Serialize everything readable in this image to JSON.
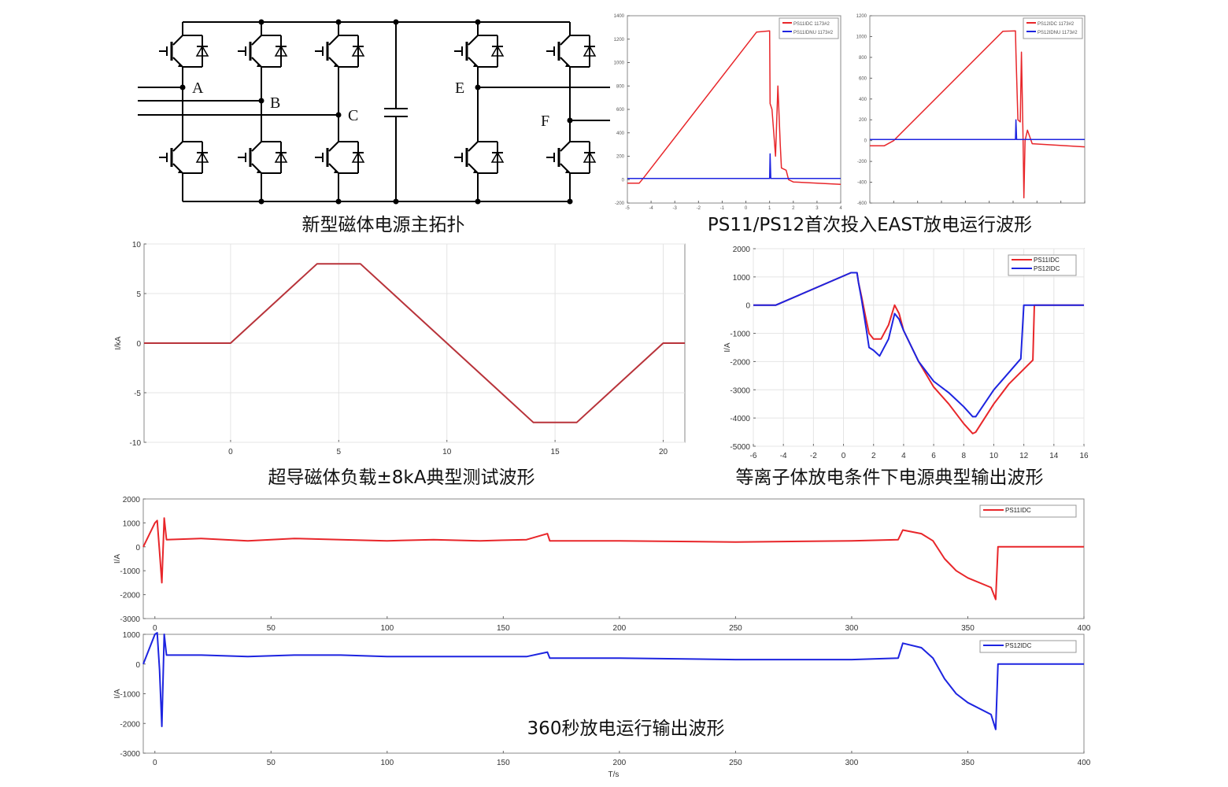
{
  "diagram": {
    "caption": "新型磁体电源主拓扑",
    "node_labels": {
      "A": "A",
      "B": "B",
      "C": "C",
      "E": "E",
      "F": "F"
    }
  },
  "captions": {
    "east_first": "PS11/PS12首次投入EAST放电运行波形",
    "test_8ka": "超导磁体负载±8kA典型测试波形",
    "plasma": "等离子体放电条件下电源典型输出波形",
    "run_360s": "360秒放电运行输出波形"
  },
  "colors": {
    "red": "#e8262a",
    "blue": "#1d24e0",
    "darkred": "#b8333a",
    "grid": "#e4e4e4"
  },
  "chart_data": [
    {
      "id": "east-ps11",
      "type": "line",
      "xlim": [
        -5,
        4
      ],
      "ylim": [
        -200,
        1400
      ],
      "xticks": [
        -5,
        -4,
        -3,
        -2,
        -1,
        0,
        1,
        2,
        3,
        4
      ],
      "yticks": [
        -200,
        0,
        200,
        400,
        600,
        800,
        1000,
        1200,
        1400
      ],
      "xtick_labels": true,
      "grid": false,
      "small": true,
      "legend": "top-right",
      "legend_entries": [
        "PS11IDC 1173#2",
        "PS11IDNU 1173#2"
      ],
      "series": [
        {
          "color": "red",
          "points": [
            [
              -5,
              -30
            ],
            [
              -4.5,
              -30
            ],
            [
              -4.3,
              20
            ],
            [
              0.45,
              1260
            ],
            [
              1.0,
              1270
            ],
            [
              1.02,
              650
            ],
            [
              1.1,
              600
            ],
            [
              1.25,
              200
            ],
            [
              1.35,
              800
            ],
            [
              1.45,
              300
            ],
            [
              1.5,
              100
            ],
            [
              1.7,
              80
            ],
            [
              1.8,
              0
            ],
            [
              2.0,
              -20
            ],
            [
              4,
              -40
            ]
          ]
        },
        {
          "color": "blue",
          "points": [
            [
              -5,
              10
            ],
            [
              1.0,
              10
            ],
            [
              1.02,
              220
            ],
            [
              1.05,
              10
            ],
            [
              4,
              10
            ]
          ]
        }
      ]
    },
    {
      "id": "east-ps12",
      "type": "line",
      "xlim": [
        -5,
        4
      ],
      "ylim": [
        -600,
        1200
      ],
      "xticks": [
        -5,
        -4,
        -3,
        -2,
        -1,
        0,
        1,
        2,
        3,
        4
      ],
      "yticks": [
        -600,
        -400,
        -200,
        0,
        200,
        400,
        600,
        800,
        1000,
        1200
      ],
      "xtick_labels": false,
      "grid": false,
      "small": true,
      "legend": "top-right",
      "legend_entries": [
        "PS12IDC 1173#2",
        "PS12IDNU 1173#2"
      ],
      "series": [
        {
          "color": "red",
          "points": [
            [
              -5,
              -50
            ],
            [
              -4.4,
              -50
            ],
            [
              -4.0,
              0
            ],
            [
              0.57,
              1050
            ],
            [
              1.1,
              1055
            ],
            [
              1.12,
              850
            ],
            [
              1.2,
              200
            ],
            [
              1.3,
              180
            ],
            [
              1.35,
              850
            ],
            [
              1.42,
              0
            ],
            [
              1.45,
              -550
            ],
            [
              1.5,
              0
            ],
            [
              1.6,
              100
            ],
            [
              1.8,
              -30
            ],
            [
              4,
              -60
            ]
          ]
        },
        {
          "color": "blue",
          "points": [
            [
              -5,
              10
            ],
            [
              1.1,
              10
            ],
            [
              1.12,
              200
            ],
            [
              1.15,
              10
            ],
            [
              4,
              10
            ]
          ]
        }
      ]
    },
    {
      "id": "test-8ka",
      "type": "line",
      "xlim": [
        -4,
        21
      ],
      "ylim": [
        -10,
        10
      ],
      "xticks": [
        0,
        5,
        10,
        15,
        20
      ],
      "yticks": [
        -10,
        -5,
        0,
        5,
        10
      ],
      "xtick_labels": true,
      "grid": true,
      "ylabel": "I/kA",
      "series": [
        {
          "color": "darkred",
          "points": [
            [
              -4,
              0
            ],
            [
              0,
              0
            ],
            [
              4,
              8
            ],
            [
              6,
              8
            ],
            [
              14,
              -8
            ],
            [
              16,
              -8
            ],
            [
              20,
              0
            ],
            [
              21,
              0
            ]
          ]
        }
      ]
    },
    {
      "id": "plasma",
      "type": "line",
      "xlim": [
        -6,
        16
      ],
      "ylim": [
        -5000,
        2000
      ],
      "xticks": [
        -6,
        -4,
        -2,
        0,
        2,
        4,
        6,
        8,
        10,
        12,
        14,
        16
      ],
      "yticks": [
        -5000,
        -4000,
        -3000,
        -2000,
        -1000,
        0,
        1000,
        2000
      ],
      "xtick_labels": true,
      "grid": true,
      "ylabel": "I/A",
      "legend": "top-right",
      "series": [
        {
          "name": "PS11IDC",
          "color": "red",
          "points": [
            [
              -6,
              0
            ],
            [
              -4.5,
              0
            ],
            [
              0.5,
              1150
            ],
            [
              0.9,
              1150
            ],
            [
              1.0,
              800
            ],
            [
              1.2,
              300
            ],
            [
              1.5,
              -500
            ],
            [
              1.7,
              -1000
            ],
            [
              2.0,
              -1200
            ],
            [
              2.5,
              -1200
            ],
            [
              3.0,
              -700
            ],
            [
              3.4,
              0
            ],
            [
              3.7,
              -300
            ],
            [
              4.0,
              -900
            ],
            [
              5,
              -2000
            ],
            [
              6,
              -2900
            ],
            [
              7,
              -3500
            ],
            [
              8,
              -4200
            ],
            [
              8.6,
              -4550
            ],
            [
              8.8,
              -4500
            ],
            [
              10,
              -3500
            ],
            [
              11,
              -2800
            ],
            [
              12.6,
              -1950
            ],
            [
              12.7,
              0
            ],
            [
              16,
              0
            ]
          ]
        },
        {
          "name": "PS12IDC",
          "color": "blue",
          "points": [
            [
              -6,
              0
            ],
            [
              -4.5,
              0
            ],
            [
              0.5,
              1150
            ],
            [
              0.9,
              1150
            ],
            [
              1.0,
              800
            ],
            [
              1.2,
              200
            ],
            [
              1.5,
              -800
            ],
            [
              1.7,
              -1500
            ],
            [
              2.0,
              -1600
            ],
            [
              2.4,
              -1800
            ],
            [
              3.0,
              -1200
            ],
            [
              3.4,
              -300
            ],
            [
              3.7,
              -500
            ],
            [
              4,
              -900
            ],
            [
              5,
              -2000
            ],
            [
              6,
              -2700
            ],
            [
              7,
              -3100
            ],
            [
              8,
              -3600
            ],
            [
              8.6,
              -3950
            ],
            [
              8.8,
              -3950
            ],
            [
              10,
              -3000
            ],
            [
              11.8,
              -1900
            ],
            [
              12,
              0
            ],
            [
              12.5,
              0
            ],
            [
              16,
              0
            ]
          ]
        }
      ]
    },
    {
      "id": "run-ps11",
      "type": "line",
      "xlim": [
        -5,
        400
      ],
      "ylim": [
        -3000,
        2000
      ],
      "xticks": [
        0,
        50,
        100,
        150,
        200,
        250,
        300,
        350,
        400
      ],
      "yticks": [
        -3000,
        -2000,
        -1000,
        0,
        1000,
        2000
      ],
      "xtick_labels": true,
      "grid": false,
      "ylabel": "I/A",
      "legend": "top-right",
      "series": [
        {
          "name": "PS11IDC",
          "color": "red",
          "points": [
            [
              -5,
              0
            ],
            [
              0,
              1000
            ],
            [
              1,
              1100
            ],
            [
              2,
              -200
            ],
            [
              3,
              -1500
            ],
            [
              4,
              1200
            ],
            [
              5,
              300
            ],
            [
              20,
              350
            ],
            [
              40,
              250
            ],
            [
              60,
              350
            ],
            [
              80,
              300
            ],
            [
              100,
              250
            ],
            [
              120,
              300
            ],
            [
              140,
              250
            ],
            [
              160,
              300
            ],
            [
              169,
              550
            ],
            [
              170,
              250
            ],
            [
              200,
              250
            ],
            [
              250,
              200
            ],
            [
              300,
              250
            ],
            [
              320,
              300
            ],
            [
              322,
              700
            ],
            [
              330,
              550
            ],
            [
              335,
              250
            ],
            [
              340,
              -500
            ],
            [
              345,
              -1000
            ],
            [
              350,
              -1300
            ],
            [
              360,
              -1700
            ],
            [
              362,
              -2200
            ],
            [
              363,
              0
            ],
            [
              400,
              0
            ]
          ]
        }
      ]
    },
    {
      "id": "run-ps12",
      "type": "line",
      "xlim": [
        -5,
        400
      ],
      "ylim": [
        -3000,
        1000
      ],
      "xticks": [
        0,
        50,
        100,
        150,
        200,
        250,
        300,
        350,
        400
      ],
      "yticks": [
        -3000,
        -2000,
        -1000,
        0,
        1000
      ],
      "xtick_labels": true,
      "grid": false,
      "ylabel": "I/A",
      "xlabel": "T/s",
      "legend": "top-right",
      "series": [
        {
          "name": "PS12IDC",
          "color": "blue",
          "points": [
            [
              -5,
              0
            ],
            [
              0,
              1000
            ],
            [
              1,
              1050
            ],
            [
              2,
              -200
            ],
            [
              3,
              -2100
            ],
            [
              4,
              1000
            ],
            [
              5,
              300
            ],
            [
              20,
              300
            ],
            [
              40,
              250
            ],
            [
              60,
              300
            ],
            [
              80,
              300
            ],
            [
              100,
              250
            ],
            [
              120,
              250
            ],
            [
              140,
              250
            ],
            [
              160,
              250
            ],
            [
              169,
              400
            ],
            [
              170,
              200
            ],
            [
              200,
              200
            ],
            [
              250,
              150
            ],
            [
              300,
              150
            ],
            [
              320,
              200
            ],
            [
              322,
              700
            ],
            [
              330,
              550
            ],
            [
              335,
              200
            ],
            [
              340,
              -500
            ],
            [
              345,
              -1000
            ],
            [
              350,
              -1300
            ],
            [
              360,
              -1700
            ],
            [
              362,
              -2200
            ],
            [
              363,
              0
            ],
            [
              400,
              0
            ]
          ]
        }
      ]
    }
  ]
}
